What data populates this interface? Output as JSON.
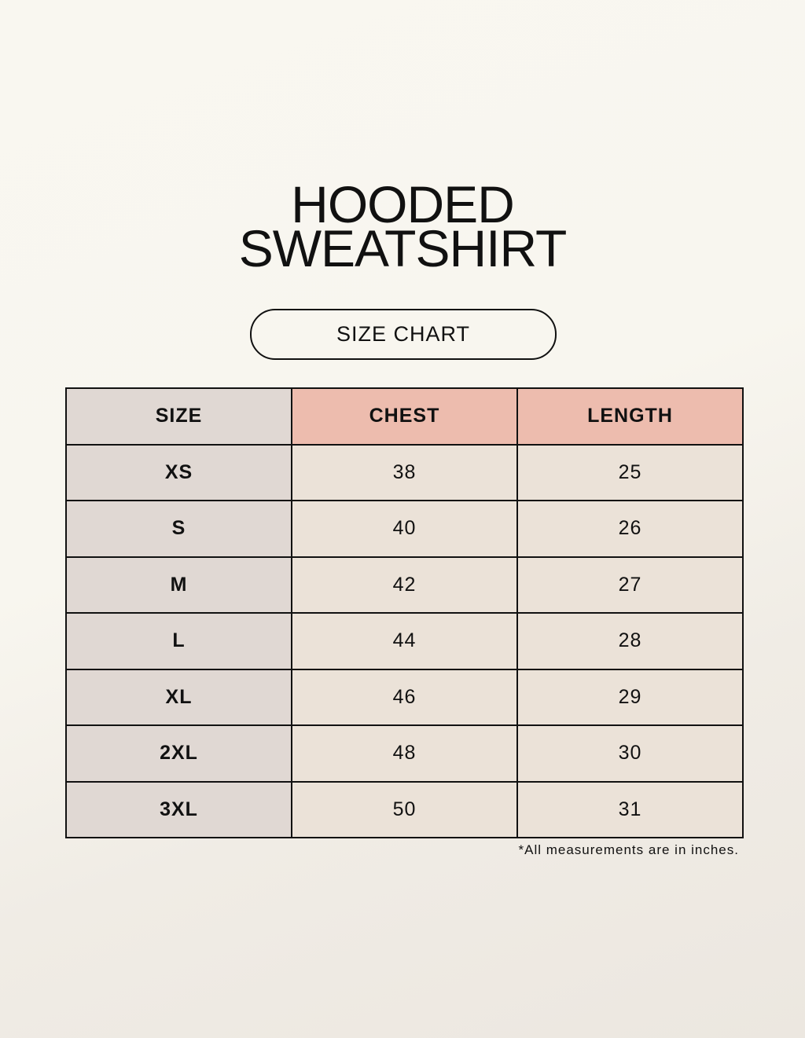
{
  "title_line1": "HOODED",
  "title_line2": "SWEATSHIRT",
  "subtitle": "SIZE CHART",
  "table": {
    "headers": [
      "SIZE",
      "CHEST",
      "LENGTH"
    ],
    "rows": [
      [
        "XS",
        "38",
        "25"
      ],
      [
        "S",
        "40",
        "26"
      ],
      [
        "M",
        "42",
        "27"
      ],
      [
        "L",
        "44",
        "28"
      ],
      [
        "XL",
        "46",
        "29"
      ],
      [
        "2XL",
        "48",
        "30"
      ],
      [
        "3XL",
        "50",
        "31"
      ]
    ]
  },
  "footnote": "*All measurements are in inches.",
  "colors": {
    "size_column": "#e0d8d3",
    "header_accent": "#edbcae",
    "cell": "#ebe2d8"
  }
}
